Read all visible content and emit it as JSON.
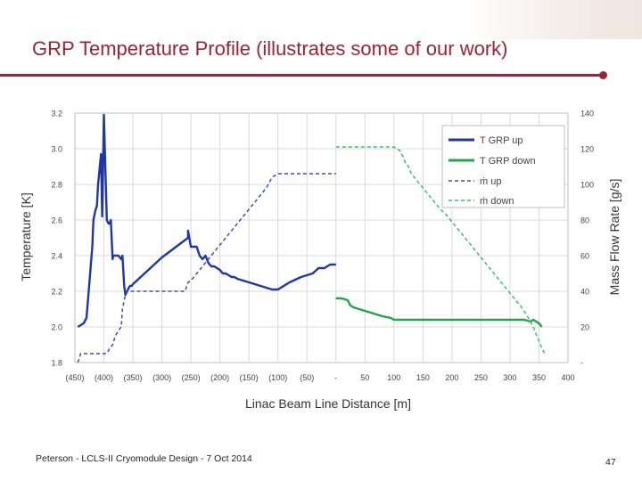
{
  "slide": {
    "title": "GRP Temperature Profile (illustrates some of our work)",
    "footer": "Peterson - LCLS-II Cryomodule Design - 7 Oct 2014",
    "page_number": "47"
  },
  "colors": {
    "accent": "#9b2335",
    "t_up": "#1f36a8",
    "t_down": "#22a54a",
    "m_up": "#3a4fb0",
    "m_down": "#3dbb66"
  },
  "chart_data": {
    "type": "line",
    "xlabel": "Linac Beam Line Distance [m]",
    "ylabel": "Temperature [K]",
    "y2label": "Mass Flow Rate [g/s]",
    "x_tick_labels": [
      "(450)",
      "(400)",
      "(350)",
      "(300)",
      "(250)",
      "(200)",
      "(150)",
      "(100)",
      "(50)",
      "-",
      "50",
      "100",
      "150",
      "200",
      "250",
      "300",
      "350",
      "400"
    ],
    "xlim": [
      -450,
      400
    ],
    "ylim": [
      1.8,
      3.2
    ],
    "y_ticks": [
      "3.2",
      "3.0",
      "2.8",
      "2.6",
      "2.4",
      "2.2",
      "2.0",
      "1.8"
    ],
    "y2lim": [
      0,
      140
    ],
    "y2_ticks": [
      "140",
      "120",
      "100",
      "80",
      "60",
      "40",
      "20",
      "-"
    ],
    "grid": true,
    "legend_position": "top-right",
    "series": [
      {
        "name": "T GRP up",
        "axis": "left",
        "style": "solid",
        "color": "#1f36a8",
        "x": [
          -445,
          -435,
          -430,
          -425,
          -420,
          -418,
          -415,
          -412,
          -410,
          -405,
          -403,
          -400,
          -395,
          -392,
          -390,
          -388,
          -385,
          -384,
          -383,
          -382,
          -380,
          -375,
          -370,
          -368,
          -365,
          -363,
          -360,
          -357,
          -355,
          -352,
          -350,
          -300,
          -255,
          -255,
          -250,
          -245,
          -240,
          -235,
          -230,
          -225,
          -220,
          -215,
          -210,
          -200,
          -195,
          -190,
          -180,
          -175,
          -170,
          -160,
          -150,
          -140,
          -130,
          -120,
          -110,
          -100,
          -80,
          -60,
          -40,
          -30,
          -20,
          -10,
          0
        ],
        "y": [
          2.0,
          2.02,
          2.05,
          2.25,
          2.45,
          2.6,
          2.65,
          2.68,
          2.8,
          2.97,
          2.62,
          3.19,
          2.6,
          2.58,
          2.58,
          2.6,
          2.38,
          2.4,
          2.4,
          2.4,
          2.4,
          2.4,
          2.38,
          2.4,
          2.23,
          2.18,
          2.2,
          2.22,
          2.23,
          2.23,
          2.24,
          2.39,
          2.5,
          2.54,
          2.45,
          2.45,
          2.45,
          2.4,
          2.38,
          2.4,
          2.36,
          2.34,
          2.34,
          2.32,
          2.3,
          2.3,
          2.28,
          2.28,
          2.27,
          2.26,
          2.25,
          2.24,
          2.23,
          2.22,
          2.21,
          2.21,
          2.25,
          2.28,
          2.3,
          2.33,
          2.33,
          2.35,
          2.35
        ]
      },
      {
        "name": "T GRP down",
        "axis": "left",
        "style": "solid",
        "color": "#22a54a",
        "x": [
          0,
          10,
          20,
          25,
          30,
          40,
          60,
          80,
          95,
          100,
          150,
          200,
          250,
          300,
          325,
          335,
          340,
          350,
          355
        ],
        "y": [
          2.16,
          2.16,
          2.15,
          2.12,
          2.11,
          2.1,
          2.08,
          2.06,
          2.05,
          2.04,
          2.04,
          2.04,
          2.04,
          2.04,
          2.04,
          2.03,
          2.04,
          2.02,
          2.0
        ]
      },
      {
        "name": "ṁ up",
        "axis": "right",
        "style": "dashed",
        "color": "#3a4fb0",
        "x": [
          -445,
          -440,
          -420,
          -415,
          -410,
          -405,
          -395,
          -390,
          -385,
          -380,
          -375,
          -370,
          -368,
          -363,
          -360,
          -355,
          -345,
          -340,
          -305,
          -300,
          -260,
          -258,
          -255,
          -250,
          -245,
          -240,
          -235,
          -230,
          -220,
          -210,
          -200,
          -190,
          -180,
          -170,
          -160,
          -150,
          -140,
          -130,
          -125,
          -120,
          -110,
          -100,
          -90,
          -80,
          -60,
          -40,
          0
        ],
        "y": [
          0,
          5,
          5,
          5,
          5,
          5,
          5,
          8,
          10,
          15,
          18,
          20,
          30,
          38,
          40,
          40,
          40,
          40,
          40,
          40,
          40,
          42,
          45,
          46,
          48,
          50,
          52,
          54,
          58,
          62,
          66,
          70,
          74,
          78,
          82,
          86,
          90,
          94,
          96,
          98,
          104,
          106,
          106,
          106,
          106,
          106,
          106
        ]
      },
      {
        "name": "ṁ down",
        "axis": "right",
        "style": "dashed",
        "color": "#3dbb66",
        "x": [
          0,
          40,
          80,
          100,
          110,
          115,
          120,
          125,
          130,
          140,
          150,
          160,
          170,
          180,
          190,
          200,
          210,
          220,
          230,
          240,
          250,
          260,
          270,
          280,
          290,
          300,
          310,
          320,
          330,
          340,
          345,
          350,
          355,
          360
        ],
        "y": [
          121,
          121,
          121,
          121,
          119,
          116,
          112,
          110,
          106,
          102,
          98,
          94,
          90,
          86,
          83,
          79,
          75,
          71,
          67,
          63,
          59,
          55,
          51,
          47,
          43,
          39,
          35,
          31,
          26,
          20,
          16,
          12,
          8,
          5
        ]
      }
    ]
  }
}
